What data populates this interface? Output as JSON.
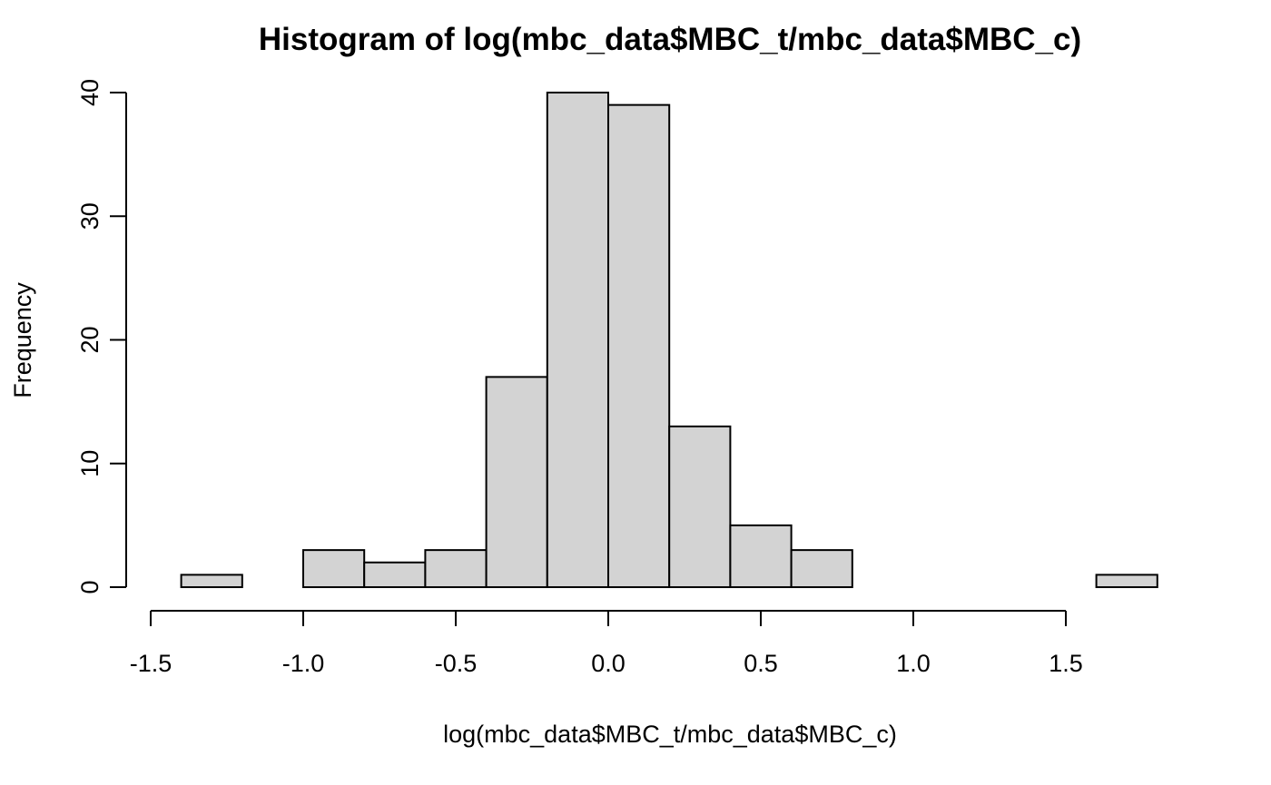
{
  "chart_data": {
    "type": "bar",
    "title": "Histogram of log(mbc_data$MBC_t/mbc_data$MBC_c)",
    "xlabel": "log(mbc_data$MBC_t/mbc_data$MBC_c)",
    "ylabel": "Frequency",
    "bins": [
      {
        "start": -1.4,
        "end": -1.2,
        "count": 1
      },
      {
        "start": -1.2,
        "end": -1.0,
        "count": 0
      },
      {
        "start": -1.0,
        "end": -0.8,
        "count": 3
      },
      {
        "start": -0.8,
        "end": -0.6,
        "count": 2
      },
      {
        "start": -0.6,
        "end": -0.4,
        "count": 3
      },
      {
        "start": -0.4,
        "end": -0.2,
        "count": 17
      },
      {
        "start": -0.2,
        "end": 0.0,
        "count": 40
      },
      {
        "start": 0.0,
        "end": 0.2,
        "count": 39
      },
      {
        "start": 0.2,
        "end": 0.4,
        "count": 13
      },
      {
        "start": 0.4,
        "end": 0.6,
        "count": 5
      },
      {
        "start": 0.6,
        "end": 0.8,
        "count": 3
      },
      {
        "start": 0.8,
        "end": 1.0,
        "count": 0
      },
      {
        "start": 1.0,
        "end": 1.2,
        "count": 0
      },
      {
        "start": 1.2,
        "end": 1.4,
        "count": 0
      },
      {
        "start": 1.4,
        "end": 1.6,
        "count": 0
      },
      {
        "start": 1.6,
        "end": 1.8,
        "count": 1
      }
    ],
    "xlim": [
      -1.5,
      1.8
    ],
    "ylim": [
      0,
      40
    ],
    "x_ticks": [
      -1.5,
      -1.0,
      -0.5,
      0.0,
      0.5,
      1.0,
      1.5
    ],
    "x_tick_labels": [
      "-1.5",
      "-1.0",
      "-0.5",
      "0.0",
      "0.5",
      "1.0",
      "1.5"
    ],
    "y_ticks": [
      0,
      10,
      20,
      30,
      40
    ],
    "y_tick_labels": [
      "0",
      "10",
      "20",
      "30",
      "40"
    ],
    "grid": false,
    "colors": {
      "bar_fill": "#d3d3d3",
      "bar_stroke": "#000000",
      "axis": "#000000",
      "background": "#ffffff"
    }
  }
}
